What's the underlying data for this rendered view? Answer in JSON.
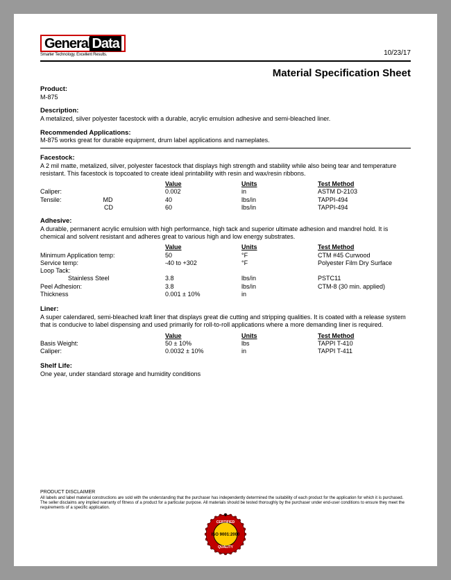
{
  "logo": {
    "word1": "General",
    "word2": "Data",
    "tagline": "Smarter Technology. Excellent Results."
  },
  "date": "10/23/17",
  "doc_title": "Material Specification Sheet",
  "product": {
    "label": "Product:",
    "value": "M-875"
  },
  "description": {
    "label": "Description:",
    "value": "A metalized, silver polyester facestock with a durable, acrylic emulsion adhesive and semi-bleached liner."
  },
  "recommended": {
    "label": "Recommended Applications:",
    "value": "M-875 works great for durable equipment, drum label applications and nameplates."
  },
  "headers": {
    "value": "Value",
    "units": "Units",
    "method": "Test Method"
  },
  "facestock": {
    "label": "Facestock:",
    "desc": "A 2 mil matte, metalized, silver, polyester facestock that displays high strength and stability while also being tear and temperature resistant. This facestock is topcoated to create ideal printability with resin and wax/resin ribbons.",
    "rows": [
      {
        "label": "Caliper:",
        "value": "0.002",
        "units": "in",
        "method": "ASTM D-2103"
      },
      {
        "label": "Tensile:",
        "sub": "MD",
        "value": "40",
        "units": "lbs/in",
        "method": "TAPPI-494"
      },
      {
        "label": "",
        "sub": "CD",
        "value": "60",
        "units": "lbs/in",
        "method": "TAPPI-494"
      }
    ]
  },
  "adhesive": {
    "label": "Adhesive:",
    "desc": "A durable, permanent acrylic emulsion with high performance, high tack and superior ultimate adhesion and mandrel hold. It is chemical and solvent resistant and adheres great to various high and low energy substrates.",
    "rows": [
      {
        "label": "Minimum Application temp:",
        "value": "50",
        "units": "°F",
        "method": "CTM #45 Curwood"
      },
      {
        "label": "Service temp:",
        "value": "-40 to +302",
        "units": "°F",
        "method": "Polyester Film Dry Surface"
      },
      {
        "label": "Loop Tack:",
        "value": "",
        "units": "",
        "method": ""
      },
      {
        "label": "Stainless Steel",
        "indent": true,
        "value": "3.8",
        "units": "lbs/in",
        "method": "PSTC11"
      },
      {
        "label": "Peel Adhesion:",
        "value": "3.8",
        "units": "lbs/in",
        "method": "CTM-8 (30 min. applied)"
      },
      {
        "label": "Thickness",
        "value": "0.001 ± 10%",
        "units": "in",
        "method": ""
      }
    ]
  },
  "liner": {
    "label": "Liner:",
    "desc": "A super calendared, semi-bleached kraft liner that displays great die cutting and stripping qualities. It is coated with a release system that is conducive to label dispensing and used primarily for roll-to-roll applications where a more demanding liner is required.",
    "rows": [
      {
        "label": "Basis Weight:",
        "value": "50 ± 10%",
        "units": "lbs",
        "method": "TAPPI T-410"
      },
      {
        "label": "Caliper:",
        "value": "0.0032 ± 10%",
        "units": "in",
        "method": "TAPPI T-411"
      }
    ]
  },
  "shelf": {
    "label": "Shelf Life:",
    "value": "One year, under standard storage and humidity conditions"
  },
  "disclaimer": {
    "title": "PRODUCT DISCLAIMER",
    "text": "All labels and label material constructions are sold with the understanding that the purchaser has independently determined the suitability of each product for the application for which it is purchased. The seller disclaims any implied warranty of fitness of a product for a particular purpose. All materials should be tested thoroughly by the purchaser under end-user conditions to ensure they meet the requirements of a specific application."
  },
  "iso": {
    "top_text": "CERTIFIED",
    "mid_text": "ISO 9001:2000",
    "bot_text": "QUALITY",
    "outer_color": "#c00000",
    "inner_color": "#ffcc00",
    "text_color": "#000000"
  }
}
